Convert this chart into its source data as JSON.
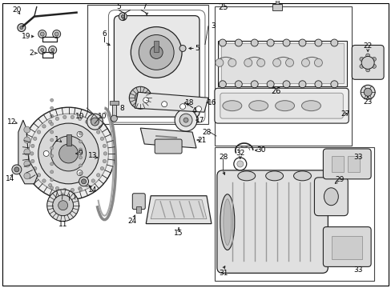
{
  "bg_color": "#ffffff",
  "lc": "#222222",
  "lc2": "#555555",
  "lfs": 6.5,
  "fig_width": 4.89,
  "fig_height": 3.6,
  "dpi": 100
}
